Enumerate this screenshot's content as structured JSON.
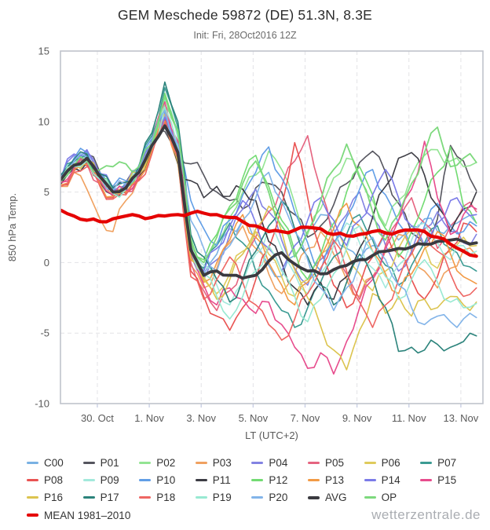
{
  "header": {
    "title": "GEM Meschede 59872 (DE) 51.3N, 8.3E",
    "subtitle": "Init: Fri, 28Oct2016 12Z"
  },
  "footer": {
    "watermark": "wetterzentrale.de"
  },
  "chart_data": {
    "type": "line",
    "title": "GEM Meschede 59872 (DE) 51.3N, 8.3E",
    "subtitle": "Init: Fri, 28Oct2016 12Z",
    "xlabel": "LT (UTC+2)",
    "ylabel": "850 hPa Temp.",
    "ylim": [
      -10,
      15
    ],
    "yticks": [
      {
        "v": -10,
        "label": "-10"
      },
      {
        "v": -5,
        "label": "-5"
      },
      {
        "v": 0,
        "label": "0"
      },
      {
        "v": 5,
        "label": "5"
      },
      {
        "v": 10,
        "label": "10"
      },
      {
        "v": 15,
        "label": "15"
      }
    ],
    "xticks": [
      {
        "d": 2,
        "label": "30. Oct"
      },
      {
        "d": 4,
        "label": "1. Nov"
      },
      {
        "d": 6,
        "label": "3. Nov"
      },
      {
        "d": 8,
        "label": "5. Nov"
      },
      {
        "d": 10,
        "label": "7. Nov"
      },
      {
        "d": 12,
        "label": "9. Nov"
      },
      {
        "d": 14,
        "label": "11. Nov"
      },
      {
        "d": 16,
        "label": "13. Nov"
      }
    ],
    "xlim_days": [
      0.58,
      16.85
    ],
    "grid": true,
    "legend_position": "bottom",
    "x_days": [
      0.6,
      1.1,
      1.6,
      2.1,
      2.6,
      3.1,
      3.6,
      4.1,
      4.6,
      5.1,
      5.6,
      6.1,
      6.6,
      7.1,
      7.6,
      8.1,
      8.6,
      9.1,
      9.6,
      10.1,
      10.6,
      11.1,
      11.6,
      12.1,
      12.6,
      13.1,
      13.6,
      14.1,
      14.6,
      15.1,
      15.6,
      16.1,
      16.6
    ],
    "series": [
      {
        "name": "C00",
        "color": "#79B1E3",
        "width": 1.6,
        "values": [
          6.0,
          7.1,
          7.4,
          6.0,
          5.1,
          5.4,
          6.5,
          8.5,
          10.4,
          8.0,
          0.5,
          -0.8,
          0.6,
          2.4,
          3.0,
          1.4,
          -0.2,
          -1.0,
          0.5,
          2.2,
          3.4,
          2.4,
          1.0,
          0.2,
          1.2,
          2.1,
          1.6,
          2.6,
          3.1,
          2.2,
          2.6,
          3.1,
          2.8
        ]
      },
      {
        "name": "P01",
        "color": "#55555E",
        "width": 1.6,
        "values": [
          6.2,
          7.3,
          7.7,
          6.4,
          5.3,
          5.7,
          6.7,
          8.7,
          9.3,
          7.8,
          7.0,
          6.2,
          5.0,
          4.4,
          3.8,
          5.3,
          5.6,
          5.0,
          3.4,
          1.8,
          2.6,
          4.1,
          5.6,
          7.1,
          7.9,
          6.4,
          4.2,
          2.1,
          1.3,
          3.1,
          8.3,
          7.2,
          5.1
        ]
      },
      {
        "name": "P02",
        "color": "#93E493",
        "width": 1.6,
        "values": [
          5.7,
          6.8,
          7.2,
          5.8,
          4.9,
          5.2,
          6.2,
          8.1,
          11.2,
          9.0,
          1.8,
          -0.6,
          1.4,
          3.2,
          5.0,
          6.2,
          7.9,
          6.6,
          4.2,
          2.0,
          3.8,
          6.0,
          7.4,
          6.2,
          4.4,
          2.6,
          4.4,
          6.2,
          7.6,
          8.0,
          7.2,
          6.8,
          7.1
        ]
      },
      {
        "name": "P03",
        "color": "#F0A160",
        "width": 1.6,
        "values": [
          5.4,
          6.4,
          5.2,
          3.1,
          2.2,
          4.4,
          6.0,
          8.0,
          10.6,
          7.0,
          -0.2,
          -1.8,
          -0.4,
          1.4,
          2.6,
          1.0,
          -0.8,
          -2.2,
          -0.8,
          1.0,
          2.2,
          0.6,
          -1.2,
          -2.4,
          -1.0,
          0.8,
          2.0,
          0.8,
          -0.6,
          -1.8,
          -0.4,
          0.9,
          0.5
        ]
      },
      {
        "name": "P04",
        "color": "#8282E2",
        "width": 1.6,
        "values": [
          5.9,
          7.6,
          7.9,
          6.2,
          5.2,
          5.5,
          6.6,
          8.4,
          10.1,
          7.4,
          0.8,
          -1.2,
          0.2,
          2.0,
          3.8,
          5.2,
          3.6,
          1.6,
          -0.4,
          -1.6,
          0.2,
          2.0,
          3.4,
          5.0,
          3.2,
          1.2,
          -0.6,
          0.8,
          2.4,
          3.6,
          2.2,
          1.4,
          2.0
        ]
      },
      {
        "name": "P05",
        "color": "#E56480",
        "width": 1.6,
        "values": [
          5.6,
          6.6,
          7.0,
          5.6,
          4.7,
          5.0,
          6.1,
          8.3,
          10.9,
          8.4,
          0.0,
          -2.0,
          -3.4,
          -2.0,
          -0.2,
          1.8,
          3.6,
          5.4,
          7.2,
          9.0,
          5.2,
          1.4,
          -0.8,
          -2.6,
          -1.0,
          1.2,
          3.0,
          4.6,
          2.8,
          1.0,
          2.6,
          4.0,
          3.6
        ]
      },
      {
        "name": "P06",
        "color": "#DFCB5C",
        "width": 1.6,
        "values": [
          5.8,
          6.9,
          7.3,
          5.9,
          5.0,
          5.3,
          6.3,
          8.2,
          9.9,
          7.2,
          0.4,
          -1.0,
          -2.2,
          -0.8,
          0.8,
          2.2,
          0.6,
          -1.0,
          -2.4,
          -1.2,
          0.6,
          2.0,
          0.8,
          -0.8,
          -2.0,
          -0.6,
          1.0,
          2.4,
          1.2,
          -0.4,
          0.8,
          1.8,
          1.2
        ]
      },
      {
        "name": "P07",
        "color": "#3B9B93",
        "width": 1.6,
        "values": [
          6.1,
          7.2,
          7.6,
          6.2,
          5.2,
          5.6,
          6.7,
          9.0,
          12.4,
          9.6,
          1.2,
          -0.4,
          1.2,
          2.8,
          1.4,
          -0.6,
          -2.0,
          -3.4,
          -4.6,
          -3.2,
          -1.4,
          0.4,
          2.0,
          3.4,
          1.6,
          -0.2,
          -1.6,
          -0.2,
          1.4,
          2.6,
          1.0,
          -0.2,
          -0.6
        ]
      },
      {
        "name": "P08",
        "color": "#E95352",
        "width": 1.6,
        "values": [
          5.5,
          6.5,
          6.9,
          5.5,
          4.6,
          4.9,
          5.9,
          7.8,
          10.2,
          7.6,
          -0.6,
          -2.4,
          -3.8,
          -4.8,
          -3.2,
          -1.2,
          1.0,
          4.0,
          8.5,
          4.6,
          0.8,
          -1.6,
          -3.2,
          -1.6,
          0.4,
          2.2,
          0.6,
          -1.2,
          -2.6,
          -1.0,
          1.0,
          2.8,
          2.2
        ]
      },
      {
        "name": "P09",
        "color": "#A3E9DC",
        "width": 1.6,
        "values": [
          5.9,
          7.0,
          7.4,
          6.0,
          5.1,
          5.4,
          6.4,
          8.4,
          11.6,
          8.8,
          1.0,
          -0.2,
          -1.6,
          -3.0,
          -1.4,
          0.6,
          2.4,
          1.0,
          -0.8,
          -2.2,
          -0.8,
          1.2,
          2.8,
          1.4,
          -0.4,
          -1.8,
          -0.2,
          1.6,
          2.8,
          1.4,
          0.2,
          1.2,
          0.8
        ]
      },
      {
        "name": "P10",
        "color": "#619EE6",
        "width": 1.6,
        "values": [
          6.3,
          7.4,
          7.8,
          6.4,
          5.4,
          5.8,
          6.9,
          8.8,
          10.7,
          8.2,
          4.4,
          2.4,
          1.2,
          3.0,
          4.8,
          6.4,
          8.2,
          6.0,
          3.6,
          1.4,
          -0.6,
          1.4,
          3.2,
          5.2,
          6.6,
          4.8,
          2.8,
          1.0,
          2.6,
          4.2,
          2.6,
          2.2,
          2.6
        ]
      },
      {
        "name": "P11",
        "color": "#3C3C44",
        "width": 1.6,
        "values": [
          5.6,
          6.7,
          7.1,
          5.7,
          4.8,
          5.1,
          6.1,
          8.0,
          9.6,
          7.0,
          5.8,
          4.6,
          5.4,
          4.7,
          5.2,
          4.4,
          1.5,
          0.0,
          -1.8,
          -3.0,
          -1.4,
          -2.6,
          -1.0,
          1.0,
          3.2,
          5.4,
          7.4,
          7.8,
          6.2,
          4.0,
          2.2,
          3.8,
          5.0
        ]
      },
      {
        "name": "P12",
        "color": "#72DB72",
        "width": 1.6,
        "values": [
          5.8,
          6.9,
          7.3,
          6.0,
          5.0,
          5.4,
          6.4,
          8.3,
          12.0,
          9.2,
          1.6,
          0.2,
          2.0,
          4.0,
          6.0,
          7.6,
          5.4,
          3.0,
          0.8,
          -1.2,
          0.6,
          2.8,
          5.0,
          6.8,
          4.8,
          2.4,
          0.4,
          2.2,
          4.4,
          6.4,
          8.2,
          4.0,
          2.8
        ]
      },
      {
        "name": "P13",
        "color": "#F29A45",
        "width": 1.6,
        "values": [
          5.5,
          6.6,
          7.0,
          5.6,
          4.7,
          5.0,
          6.0,
          7.9,
          10.0,
          7.3,
          0.2,
          -1.4,
          0.0,
          1.6,
          3.4,
          1.8,
          0.0,
          -1.6,
          -3.0,
          -1.4,
          0.4,
          2.4,
          4.2,
          2.6,
          0.8,
          -0.8,
          -2.2,
          -0.8,
          1.0,
          2.2,
          0.6,
          -1.0,
          -1.5
        ]
      },
      {
        "name": "P14",
        "color": "#7B7BE8",
        "width": 1.6,
        "values": [
          6.0,
          7.7,
          8.0,
          6.3,
          5.3,
          5.6,
          6.7,
          8.5,
          10.3,
          7.7,
          1.0,
          -0.6,
          1.0,
          2.6,
          4.4,
          2.8,
          1.0,
          -0.6,
          1.2,
          3.0,
          4.6,
          3.0,
          1.2,
          3.0,
          4.8,
          6.6,
          4.6,
          2.6,
          1.2,
          2.8,
          4.4,
          3.8,
          3.4
        ]
      },
      {
        "name": "P15",
        "color": "#E74C8D",
        "width": 1.6,
        "values": [
          5.7,
          6.7,
          7.1,
          5.8,
          4.8,
          5.1,
          6.2,
          8.6,
          11.4,
          8.6,
          0.6,
          -1.6,
          -3.0,
          -1.8,
          -2.6,
          -3.6,
          -2.8,
          -4.4,
          -6.0,
          -7.5,
          -6.4,
          -7.9,
          -5.6,
          -3.2,
          -1.2,
          1.0,
          3.0,
          5.2,
          8.6,
          4.6,
          2.0,
          3.4,
          3.8
        ]
      },
      {
        "name": "P16",
        "color": "#DCC44F",
        "width": 1.6,
        "values": [
          5.9,
          7.0,
          7.3,
          6.0,
          5.0,
          5.4,
          6.4,
          8.2,
          9.8,
          7.1,
          0.3,
          -1.2,
          -2.6,
          -1.2,
          0.6,
          2.4,
          4.0,
          2.2,
          -0.5,
          -2.5,
          -4.5,
          -6.2,
          -7.6,
          -4.8,
          -2.2,
          -3.6,
          -2.4,
          -3.8,
          -2.6,
          -3.2,
          -2.4,
          -3.0,
          -2.8
        ]
      },
      {
        "name": "P17",
        "color": "#2B837B",
        "width": 1.6,
        "values": [
          6.2,
          7.3,
          7.7,
          6.3,
          5.3,
          5.7,
          6.8,
          9.2,
          12.8,
          10.0,
          2.0,
          0.4,
          -1.2,
          -2.8,
          -1.2,
          0.8,
          2.6,
          4.4,
          2.4,
          0.4,
          -1.6,
          -3.0,
          -1.4,
          0.6,
          -1.0,
          -3.2,
          -6.3,
          -6.0,
          -6.2,
          -5.8,
          -6.0,
          -5.6,
          -5.2
        ]
      },
      {
        "name": "P18",
        "color": "#EE6663",
        "width": 1.6,
        "values": [
          5.4,
          6.4,
          6.8,
          5.4,
          4.5,
          4.8,
          5.8,
          7.7,
          9.9,
          7.4,
          -1.0,
          -2.6,
          -1.2,
          0.4,
          -1.4,
          -3.0,
          -4.4,
          -5.5,
          -4.0,
          -2.2,
          -0.4,
          1.6,
          -0.6,
          -2.8,
          -4.6,
          -3.0,
          -1.2,
          0.6,
          2.4,
          0.8,
          -0.8,
          -2.4,
          -1.8
        ]
      },
      {
        "name": "P19",
        "color": "#98E9D2",
        "width": 1.6,
        "values": [
          5.8,
          6.8,
          7.2,
          5.9,
          4.9,
          5.2,
          6.3,
          8.1,
          11.0,
          8.2,
          0.8,
          -0.8,
          -2.4,
          -4.0,
          -2.4,
          -0.6,
          1.2,
          -0.6,
          -2.4,
          -4.2,
          -2.6,
          -0.8,
          1.0,
          2.6,
          0.8,
          -1.0,
          -2.6,
          -1.2,
          0.2,
          -1.4,
          -2.8,
          -3.2,
          -2.9
        ]
      },
      {
        "name": "P20",
        "color": "#82B4E9",
        "width": 1.6,
        "values": [
          6.1,
          7.2,
          7.5,
          6.1,
          5.1,
          5.5,
          6.6,
          8.6,
          10.8,
          8.4,
          3.0,
          1.0,
          -0.6,
          1.2,
          3.0,
          4.6,
          6.4,
          4.4,
          2.2,
          0.2,
          -1.8,
          -3.4,
          -1.8,
          0.0,
          1.8,
          0.2,
          -1.6,
          -3.2,
          -4.4,
          -3.8,
          -4.2,
          -4.0,
          -3.9
        ]
      },
      {
        "name": "AVG",
        "color": "#3A3A40",
        "width": 3.8,
        "values": [
          5.9,
          6.9,
          7.4,
          6.1,
          5.0,
          5.3,
          6.4,
          8.3,
          9.7,
          7.8,
          0.9,
          -0.9,
          -0.6,
          -0.9,
          -1.1,
          -0.9,
          0.1,
          0.7,
          -0.1,
          -0.6,
          -0.8,
          -0.5,
          -0.2,
          0.2,
          0.5,
          0.8,
          1.0,
          1.1,
          1.3,
          1.5,
          1.6,
          1.5,
          1.4
        ]
      },
      {
        "name": "OP",
        "color": "#7DD97D",
        "width": 1.8,
        "values": [
          5.8,
          6.9,
          7.2,
          6.6,
          6.8,
          7.0,
          6.8,
          8.4,
          11.8,
          9.4,
          1.4,
          0.0,
          1.8,
          3.8,
          5.6,
          7.2,
          5.0,
          2.6,
          0.4,
          2.2,
          4.4,
          6.6,
          8.4,
          6.0,
          3.6,
          1.6,
          3.4,
          5.6,
          7.8,
          9.6,
          6.8,
          7.4,
          7.1
        ]
      },
      {
        "name": "MEAN 1981–2010",
        "color": "#E50000",
        "width": 4.2,
        "values": [
          3.7,
          3.3,
          3.0,
          2.9,
          3.1,
          3.3,
          3.3,
          3.2,
          3.3,
          3.4,
          3.5,
          3.5,
          3.4,
          3.2,
          2.9,
          2.6,
          2.2,
          2.2,
          2.3,
          2.5,
          2.4,
          2.0,
          1.9,
          2.0,
          2.2,
          2.1,
          2.2,
          2.3,
          2.2,
          1.8,
          1.3,
          0.8,
          0.45
        ]
      }
    ],
    "legend_rows": [
      [
        "C00",
        "P01",
        "P02",
        "P03",
        "P04",
        "P05",
        "P06",
        "P07"
      ],
      [
        "P08",
        "P09",
        "P10",
        "P11",
        "P12",
        "P13",
        "P14",
        "P15"
      ],
      [
        "P16",
        "P17",
        "P18",
        "P19",
        "P20",
        "AVG",
        "OP"
      ],
      [
        "MEAN 1981–2010"
      ]
    ]
  }
}
